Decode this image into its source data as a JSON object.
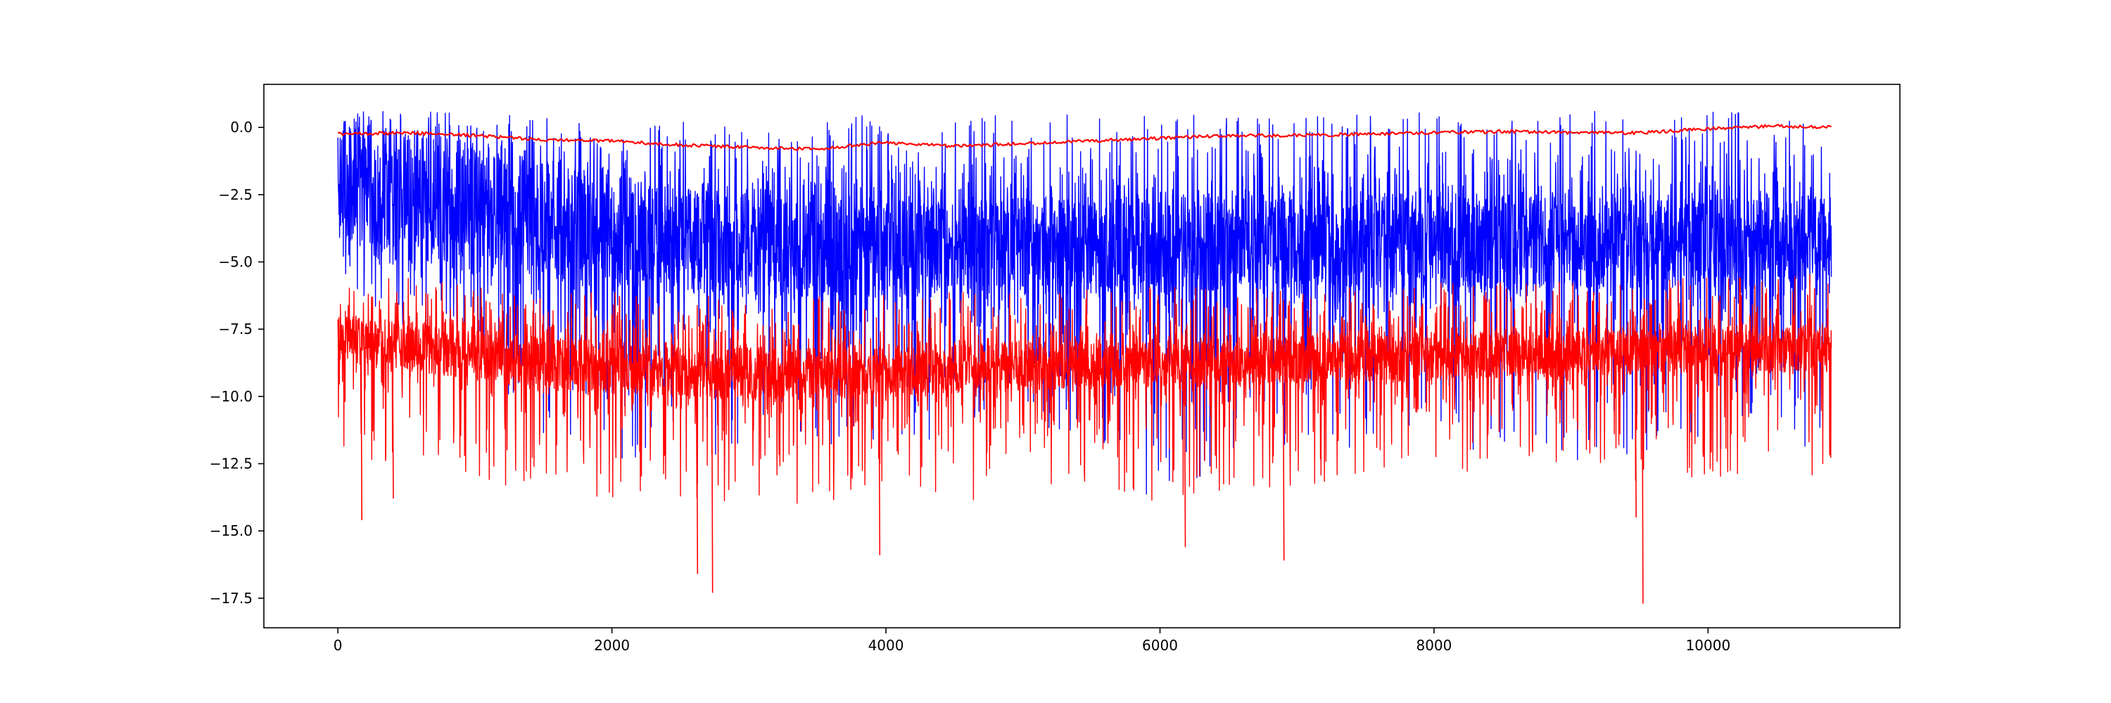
{
  "chart_data": {
    "type": "line",
    "title": "",
    "xlabel": "",
    "ylabel": "",
    "xlim": [
      -540,
      11400
    ],
    "ylim": [
      -18.6,
      1.6
    ],
    "x_ticks": [
      0,
      2000,
      4000,
      6000,
      8000,
      10000
    ],
    "x_tick_labels": [
      "0",
      "2000",
      "4000",
      "6000",
      "8000",
      "10000"
    ],
    "y_ticks": [
      0.0,
      -2.5,
      -5.0,
      -7.5,
      -10.0,
      -12.5,
      -15.0,
      -17.5
    ],
    "y_tick_labels": [
      "0.0",
      "−2.5",
      "−5.0",
      "−7.5",
      "−10.0",
      "−12.5",
      "−15.0",
      "−17.5"
    ],
    "grid": false,
    "legend": "none",
    "x_range": [
      0,
      10900
    ],
    "series": [
      {
        "color": "#0000ff",
        "style": "noisy-band",
        "x": [
          0,
          500,
          1000,
          1500,
          2000,
          2500,
          3000,
          3500,
          4000,
          4500,
          5000,
          5500,
          6000,
          6500,
          7000,
          7500,
          8000,
          8500,
          9000,
          9500,
          10000,
          10500,
          10900
        ],
        "upper": [
          0.6,
          0.6,
          0.6,
          0.4,
          0.3,
          0.2,
          0.1,
          0.2,
          0.6,
          0.6,
          0.6,
          0.6,
          0.6,
          0.6,
          0.6,
          0.6,
          0.6,
          0.6,
          0.6,
          0.6,
          0.6,
          0.6,
          0.6
        ],
        "dense_high": [
          0.0,
          -0.3,
          -0.8,
          -1.4,
          -1.8,
          -2.1,
          -2.3,
          -2.4,
          -2.5,
          -2.6,
          -2.6,
          -2.6,
          -2.6,
          -2.6,
          -2.6,
          -2.6,
          -2.6,
          -2.6,
          -2.6,
          -2.6,
          -2.6,
          -2.6,
          -2.6
        ],
        "dense_low": [
          -4.0,
          -4.6,
          -5.2,
          -5.6,
          -5.9,
          -6.1,
          -6.2,
          -6.3,
          -6.3,
          -6.3,
          -6.3,
          -6.2,
          -6.2,
          -6.1,
          -6.1,
          -6.0,
          -6.0,
          -6.0,
          -6.0,
          -6.0,
          -6.0,
          -6.0,
          -6.0
        ],
        "lower": [
          -6.0,
          -7.5,
          -8.5,
          -11.5,
          -12.5,
          -12.5,
          -12.0,
          -12.0,
          -12.0,
          -11.5,
          -11.5,
          -11.5,
          -14.5,
          -12.0,
          -12.0,
          -12.0,
          -12.0,
          -12.0,
          -12.8,
          -12.0,
          -12.0,
          -12.0,
          -12.0
        ]
      },
      {
        "color": "#ff0000",
        "style": "noisy-band",
        "x": [
          0,
          500,
          1000,
          1500,
          2000,
          2500,
          3000,
          3500,
          4000,
          4500,
          5000,
          5500,
          6000,
          6500,
          7000,
          7500,
          8000,
          8500,
          9000,
          9500,
          10000,
          10500,
          10900
        ],
        "upper": [
          -5.2,
          -5.6,
          -5.8,
          -6.0,
          -6.1,
          -6.2,
          -6.3,
          -6.3,
          -6.2,
          -6.1,
          -6.0,
          -6.0,
          -5.9,
          -5.9,
          -5.9,
          -5.8,
          -5.8,
          -5.7,
          -5.7,
          -5.6,
          -5.6,
          -5.5,
          -5.4
        ],
        "dense_high": [
          -7.0,
          -7.3,
          -7.6,
          -7.8,
          -8.0,
          -8.1,
          -8.2,
          -8.2,
          -8.1,
          -8.1,
          -8.0,
          -7.9,
          -7.9,
          -7.8,
          -7.8,
          -7.7,
          -7.7,
          -7.6,
          -7.6,
          -7.5,
          -7.5,
          -7.4,
          -7.4
        ],
        "dense_low": [
          -8.6,
          -9.0,
          -9.4,
          -9.7,
          -9.9,
          -10.0,
          -10.1,
          -10.1,
          -10.0,
          -9.9,
          -9.8,
          -9.7,
          -9.6,
          -9.5,
          -9.5,
          -9.4,
          -9.4,
          -9.3,
          -9.3,
          -9.2,
          -9.2,
          -9.1,
          -9.0
        ],
        "lower": [
          -12.0,
          -13.0,
          -13.5,
          -13.5,
          -13.8,
          -14.0,
          -14.0,
          -14.0,
          -14.0,
          -14.0,
          -13.5,
          -13.5,
          -14.0,
          -13.5,
          -13.5,
          -13.0,
          -13.0,
          -13.0,
          -13.0,
          -13.5,
          -13.0,
          -13.0,
          -13.0
        ],
        "spikes": [
          {
            "x": 170,
            "y": -14.6
          },
          {
            "x": 400,
            "y": -13.8
          },
          {
            "x": 2620,
            "y": -16.6
          },
          {
            "x": 2730,
            "y": -17.3
          },
          {
            "x": 3950,
            "y": -15.9
          },
          {
            "x": 6180,
            "y": -15.6
          },
          {
            "x": 6900,
            "y": -16.1
          },
          {
            "x": 9520,
            "y": -17.7
          },
          {
            "x": 9470,
            "y": -14.5
          }
        ]
      },
      {
        "color": "#ff0000",
        "style": "smooth",
        "x": [
          0,
          500,
          1000,
          1500,
          2000,
          2500,
          3000,
          3500,
          4000,
          4500,
          5000,
          5500,
          6000,
          6500,
          7000,
          7500,
          8000,
          8500,
          9000,
          9500,
          10000,
          10500,
          10900
        ],
        "values": [
          -0.25,
          -0.2,
          -0.3,
          -0.45,
          -0.5,
          -0.65,
          -0.75,
          -0.8,
          -0.55,
          -0.7,
          -0.6,
          -0.5,
          -0.4,
          -0.3,
          -0.3,
          -0.25,
          -0.2,
          -0.15,
          -0.2,
          -0.2,
          -0.05,
          0.05,
          0.0
        ]
      }
    ]
  }
}
